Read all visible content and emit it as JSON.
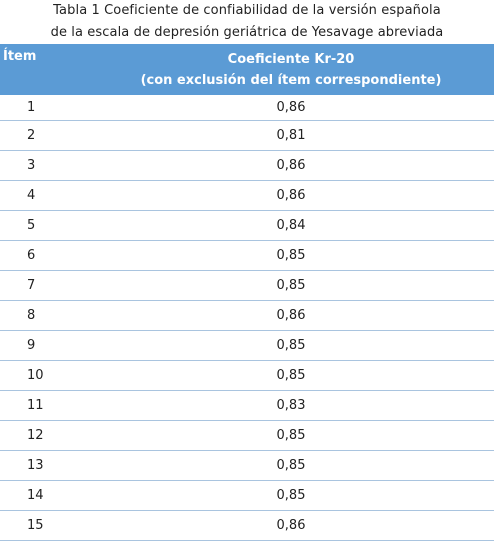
{
  "caption": {
    "line1": "Tabla 1 Coeficiente de confiabilidad de la versión española",
    "line2": "de la escala de depresión geriátrica de Yesavage abreviada"
  },
  "table": {
    "header_item": "Ítem",
    "header_coef_line1": "Coeficiente Kr-20",
    "header_coef_line2": "(con exclusión del ítem correspondiente)",
    "rows": [
      {
        "item": "1",
        "value": "0,86"
      },
      {
        "item": "2",
        "value": "0,81"
      },
      {
        "item": "3",
        "value": "0,86"
      },
      {
        "item": "4",
        "value": "0,86"
      },
      {
        "item": "5",
        "value": "0,84"
      },
      {
        "item": "6",
        "value": "0,85"
      },
      {
        "item": "7",
        "value": "0,85"
      },
      {
        "item": "8",
        "value": "0,86"
      },
      {
        "item": "9",
        "value": "0,85"
      },
      {
        "item": "10",
        "value": "0,85"
      },
      {
        "item": "11",
        "value": "0,83"
      },
      {
        "item": "12",
        "value": "0,85"
      },
      {
        "item": "13",
        "value": "0,85"
      },
      {
        "item": "14",
        "value": "0,85"
      },
      {
        "item": "15",
        "value": "0,86"
      }
    ]
  },
  "colors": {
    "header_bg": "#5b9bd5",
    "header_text": "#ffffff",
    "row_border": "#a9c4df"
  }
}
